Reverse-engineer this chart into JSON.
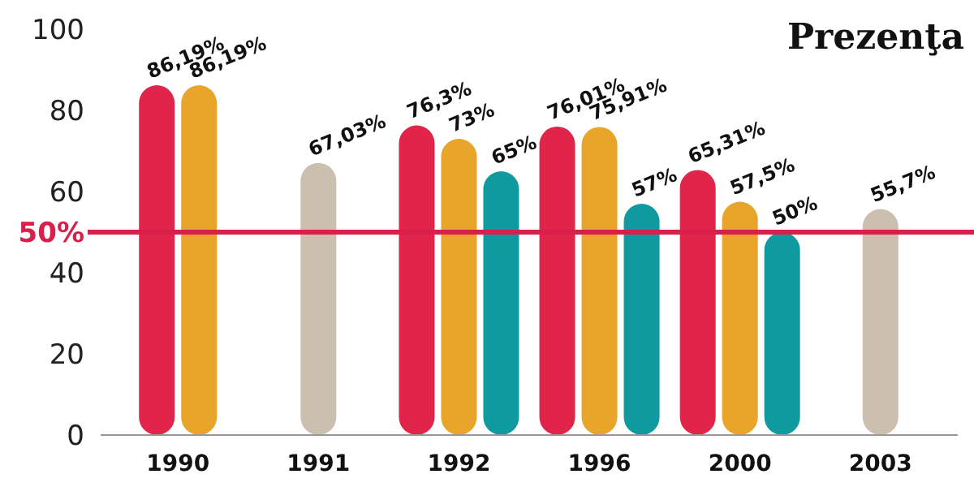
{
  "chart_data": {
    "type": "bar",
    "title": "Prezenţa",
    "categories": [
      "1990",
      "1991",
      "1992",
      "1996",
      "2000",
      "2003"
    ],
    "series": [
      {
        "color": "#e0244a",
        "values": [
          86.19,
          null,
          76.3,
          76.01,
          65.31,
          null
        ],
        "value_labels": [
          "86,19%",
          null,
          "76,3%",
          "76,01%",
          "65,31%",
          null
        ]
      },
      {
        "color": "#e8a52a",
        "values": [
          86.19,
          null,
          73,
          75.91,
          57.5,
          null
        ],
        "value_labels": [
          "86,19%",
          null,
          "73%",
          "75,91%",
          "57,5%",
          null
        ]
      },
      {
        "color": "#0f9aa0",
        "values": [
          null,
          null,
          65,
          57,
          50,
          null
        ],
        "value_labels": [
          null,
          null,
          "65%",
          "57%",
          "50%",
          null
        ]
      },
      {
        "color": "#cbbfb0",
        "values": [
          null,
          67.03,
          null,
          null,
          null,
          55.7
        ],
        "value_labels": [
          null,
          "67,03%",
          null,
          null,
          null,
          "55,7%"
        ]
      }
    ],
    "ylim": [
      0,
      100
    ],
    "yticks": [
      0,
      20,
      40,
      60,
      80,
      100
    ],
    "ref_lines": [
      {
        "axis": "y",
        "value": 50,
        "label": "50%",
        "color": "#d9204a"
      }
    ]
  }
}
